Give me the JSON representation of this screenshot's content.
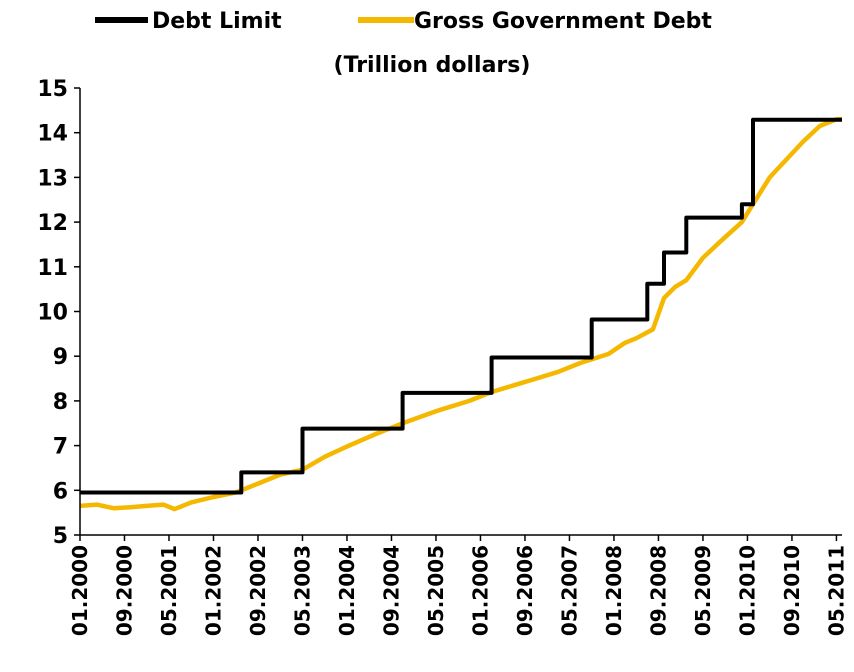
{
  "chart_data": {
    "type": "line",
    "title": "",
    "subtitle": "(Trillion dollars)",
    "xlabel": "",
    "ylabel": "",
    "ylim": [
      5,
      15
    ],
    "yticks": [
      5,
      6,
      7,
      8,
      9,
      10,
      11,
      12,
      13,
      14,
      15
    ],
    "xlim": [
      "2000-01",
      "2011-06"
    ],
    "x_tick_labels": [
      "01.2000",
      "09.2000",
      "05.2001",
      "01.2002",
      "09.2002",
      "05.2003",
      "01.2004",
      "09.2004",
      "05.2005",
      "01.2006",
      "09.2006",
      "05.2007",
      "01.2008",
      "09.2008",
      "05.2009",
      "01.2010",
      "09.2010",
      "05.2011"
    ],
    "grid": false,
    "legend_position": "top",
    "series": [
      {
        "name": "Debt Limit",
        "color": "#000000",
        "step": true,
        "points": [
          [
            "2000-01",
            5.95
          ],
          [
            "2002-06",
            5.95
          ],
          [
            "2002-06",
            6.4
          ],
          [
            "2003-05",
            6.4
          ],
          [
            "2003-05",
            7.38
          ],
          [
            "2004-11",
            7.38
          ],
          [
            "2004-11",
            8.18
          ],
          [
            "2006-03",
            8.18
          ],
          [
            "2006-03",
            8.97
          ],
          [
            "2007-09",
            8.97
          ],
          [
            "2007-09",
            9.82
          ],
          [
            "2008-07",
            9.82
          ],
          [
            "2008-07",
            10.62
          ],
          [
            "2008-10",
            10.62
          ],
          [
            "2008-10",
            11.32
          ],
          [
            "2009-02",
            11.32
          ],
          [
            "2009-02",
            12.1
          ],
          [
            "2009-12",
            12.1
          ],
          [
            "2009-12",
            12.4
          ],
          [
            "2010-02",
            12.4
          ],
          [
            "2010-02",
            14.29
          ],
          [
            "2011-06",
            14.29
          ]
        ]
      },
      {
        "name": "Gross Government Debt",
        "color": "#f5b800",
        "step": false,
        "points": [
          [
            "2000-01",
            5.65
          ],
          [
            "2000-04",
            5.68
          ],
          [
            "2000-07",
            5.6
          ],
          [
            "2000-10",
            5.62
          ],
          [
            "2001-01",
            5.65
          ],
          [
            "2001-04",
            5.68
          ],
          [
            "2001-06",
            5.58
          ],
          [
            "2001-09",
            5.73
          ],
          [
            "2002-01",
            5.85
          ],
          [
            "2002-05",
            5.95
          ],
          [
            "2002-09",
            6.15
          ],
          [
            "2003-01",
            6.35
          ],
          [
            "2003-05",
            6.46
          ],
          [
            "2003-09",
            6.75
          ],
          [
            "2004-01",
            6.98
          ],
          [
            "2004-06",
            7.25
          ],
          [
            "2004-11",
            7.5
          ],
          [
            "2005-05",
            7.77
          ],
          [
            "2005-11",
            8.0
          ],
          [
            "2006-03",
            8.2
          ],
          [
            "2006-07",
            8.35
          ],
          [
            "2006-11",
            8.5
          ],
          [
            "2007-03",
            8.65
          ],
          [
            "2007-07",
            8.85
          ],
          [
            "2007-12",
            9.05
          ],
          [
            "2008-03",
            9.3
          ],
          [
            "2008-05",
            9.4
          ],
          [
            "2008-08",
            9.6
          ],
          [
            "2008-10",
            10.3
          ],
          [
            "2008-12",
            10.55
          ],
          [
            "2009-02",
            10.7
          ],
          [
            "2009-05",
            11.2
          ],
          [
            "2009-08",
            11.55
          ],
          [
            "2009-12",
            12.0
          ],
          [
            "2010-02",
            12.4
          ],
          [
            "2010-05",
            13.0
          ],
          [
            "2010-08",
            13.4
          ],
          [
            "2010-11",
            13.8
          ],
          [
            "2011-02",
            14.15
          ],
          [
            "2011-05",
            14.3
          ],
          [
            "2011-06",
            14.3
          ]
        ]
      }
    ]
  }
}
